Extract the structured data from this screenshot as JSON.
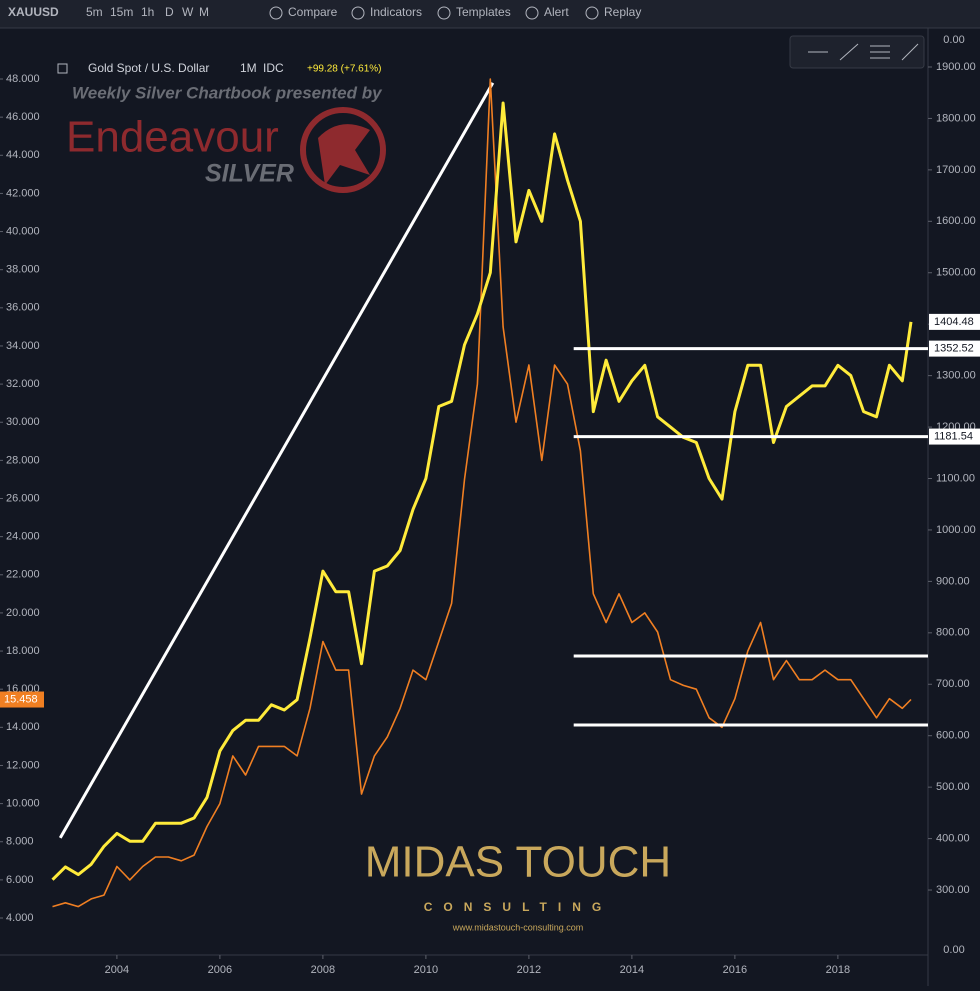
{
  "toolbar": {
    "symbol": "XAUUSD",
    "intervals": [
      "5m",
      "15m",
      "1h",
      "D",
      "W",
      "M"
    ],
    "buttons": [
      "Compare",
      "Indicators",
      "Templates",
      "Alert",
      "Replay"
    ]
  },
  "watermark": {
    "line": "Weekly Silver Chartbook presented by",
    "brand": "Endeavour",
    "brand_sub": "SILVER",
    "sponsor": "MIDAS TOUCH",
    "sponsor_sub": "CONSULTING",
    "url": "www.midastouch-consulting.com"
  },
  "chart_data": {
    "type": "line",
    "legend": {
      "interval": "1M",
      "source": "IDC",
      "change": "+99.28 (+7.61%)"
    },
    "x": [
      2002.75,
      2003,
      2003.25,
      2003.5,
      2003.75,
      2004,
      2004.25,
      2004.5,
      2004.75,
      2005,
      2005.25,
      2005.5,
      2005.75,
      2006,
      2006.25,
      2006.5,
      2006.75,
      2007,
      2007.25,
      2007.5,
      2007.75,
      2008,
      2008.25,
      2008.5,
      2008.75,
      2009,
      2009.25,
      2009.5,
      2009.75,
      2010,
      2010.25,
      2010.5,
      2010.75,
      2011,
      2011.25,
      2011.5,
      2011.75,
      2012,
      2012.25,
      2012.5,
      2012.75,
      2013,
      2013.25,
      2013.5,
      2013.75,
      2014,
      2014.25,
      2014.5,
      2014.75,
      2015,
      2015.25,
      2015.5,
      2015.75,
      2016,
      2016.25,
      2016.5,
      2016.75,
      2017,
      2017.25,
      2017.5,
      2017.75,
      2018,
      2018.25,
      2018.5,
      2018.75,
      2019,
      2019.25,
      2019.42
    ],
    "series": [
      {
        "color": "#f07f22",
        "axis": "y",
        "values": [
          4.6,
          4.8,
          4.6,
          5.0,
          5.2,
          6.7,
          6.0,
          6.7,
          7.2,
          7.2,
          7.0,
          7.3,
          8.8,
          10.0,
          12.5,
          11.5,
          13.0,
          13.0,
          13.0,
          12.5,
          15.0,
          18.5,
          17.0,
          17.0,
          10.5,
          12.5,
          13.5,
          15.0,
          17.0,
          16.5,
          18.5,
          20.5,
          27.0,
          32.0,
          48.0,
          35.0,
          30.0,
          33.0,
          28.0,
          33.0,
          32.0,
          28.5,
          21.0,
          19.5,
          21.0,
          19.5,
          20.0,
          19.0,
          16.5,
          16.2,
          16.0,
          14.5,
          14.0,
          15.5,
          18.0,
          19.5,
          16.5,
          17.5,
          16.5,
          16.5,
          17.0,
          16.5,
          16.5,
          15.5,
          14.5,
          15.5,
          15.0,
          15.458
        ]
      },
      {
        "name": "Gold Spot / U.S. Dollar",
        "color": "#ffeb3b",
        "axis": "y2",
        "values": [
          320,
          345,
          330,
          350,
          385,
          410,
          395,
          395,
          430,
          430,
          430,
          440,
          480,
          570,
          610,
          630,
          630,
          660,
          650,
          670,
          790,
          920,
          880,
          880,
          740,
          920,
          930,
          960,
          1040,
          1100,
          1240,
          1250,
          1360,
          1420,
          1500,
          1830,
          1560,
          1660,
          1600,
          1770,
          1680,
          1600,
          1230,
          1330,
          1250,
          1290,
          1320,
          1220,
          1200,
          1180,
          1170,
          1100,
          1060,
          1230,
          1320,
          1320,
          1170,
          1240,
          1260,
          1280,
          1280,
          1320,
          1300,
          1230,
          1220,
          1320,
          1290,
          1404.48
        ]
      }
    ],
    "hlines": [
      {
        "axis": "y2",
        "value": 1352.52,
        "x": [
          2012.87,
          2019.75
        ]
      },
      {
        "axis": "y2",
        "value": 1181.54,
        "x": [
          2012.87,
          2019.75
        ]
      },
      {
        "axis": "y",
        "value": 17.74,
        "x": [
          2012.87,
          2019.75
        ]
      },
      {
        "axis": "y",
        "value": 14.12,
        "x": [
          2012.87,
          2019.75
        ]
      }
    ],
    "trendline": {
      "x": [
        2002.9,
        2011.3
      ],
      "values": [
        8.2,
        47.8
      ]
    },
    "xlim": [
      2001.73,
      2019.75
    ],
    "xticks": [
      2004,
      2006,
      2008,
      2010,
      2012,
      2014,
      2016,
      2018
    ],
    "ylim": [
      2.06,
      50.57
    ],
    "yticks": [
      {
        "value": 4,
        "label": "4.000"
      },
      {
        "value": 6,
        "label": "6.000"
      },
      {
        "value": 8,
        "label": "8.000"
      },
      {
        "value": 10,
        "label": "10.000"
      },
      {
        "value": 12,
        "label": "12.000"
      },
      {
        "value": 14,
        "label": "14.000"
      },
      {
        "value": 16,
        "label": "16.000"
      },
      {
        "value": 18,
        "label": "18.000"
      },
      {
        "value": 20,
        "label": "20.000"
      },
      {
        "value": 22,
        "label": "22.000"
      },
      {
        "value": 24,
        "label": "24.000"
      },
      {
        "value": 26,
        "label": "26.000"
      },
      {
        "value": 28,
        "label": "28.000"
      },
      {
        "value": 30,
        "label": "30.000"
      },
      {
        "value": 32,
        "label": "32.000"
      },
      {
        "value": 34,
        "label": "34.000"
      },
      {
        "value": 36,
        "label": "36.000"
      },
      {
        "value": 38,
        "label": "38.000"
      },
      {
        "value": 40,
        "label": "40.000"
      },
      {
        "value": 42,
        "label": "42.000"
      },
      {
        "value": 44,
        "label": "44.000"
      },
      {
        "value": 46,
        "label": "46.000"
      },
      {
        "value": 48,
        "label": "48.000"
      }
    ],
    "y2lim": [
      173.7,
      1971.9
    ],
    "y2ticks": [
      {
        "value": 300,
        "label": "300.00"
      },
      {
        "value": 400,
        "label": "400.00"
      },
      {
        "value": 500,
        "label": "500.00"
      },
      {
        "value": 600,
        "label": "600.00"
      },
      {
        "value": 700,
        "label": "700.00"
      },
      {
        "value": 800,
        "label": "800.00"
      },
      {
        "value": 900,
        "label": "900.00"
      },
      {
        "value": 1000,
        "label": "1000.00"
      },
      {
        "value": 1100,
        "label": "1100.00"
      },
      {
        "value": 1200,
        "label": "1200.00"
      },
      {
        "value": 1300,
        "label": "1300.00"
      },
      {
        "value": 1400,
        "label": "1400.00"
      },
      {
        "value": 1500,
        "label": "1500.00"
      },
      {
        "value": 1600,
        "label": "1600.00"
      },
      {
        "value": 1700,
        "label": "1700.00"
      },
      {
        "value": 1800,
        "label": "1800.00"
      },
      {
        "value": 1900,
        "label": "1900.00"
      }
    ],
    "y2_edge_labels": [
      "0.00",
      "0.00"
    ],
    "grid": false
  }
}
